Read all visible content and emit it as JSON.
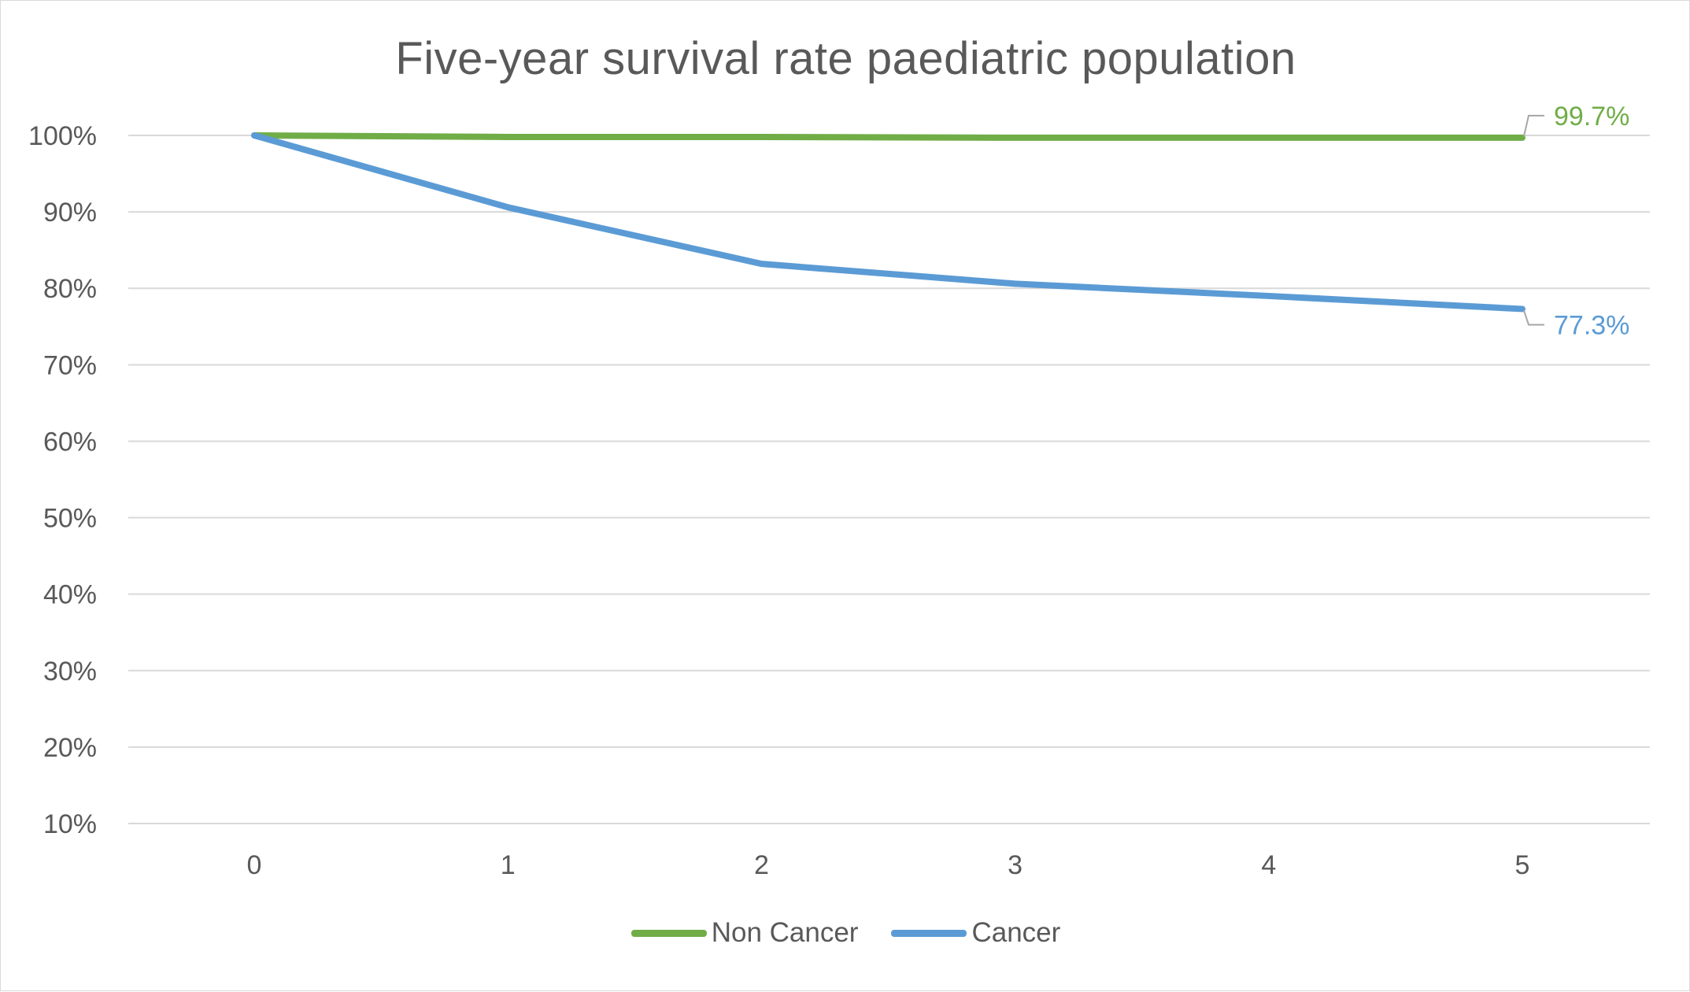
{
  "chart_data": {
    "type": "line",
    "title": "Five-year survival rate paediatric population",
    "xlabel": "",
    "ylabel": "",
    "x": [
      0,
      1,
      2,
      3,
      4,
      5
    ],
    "x_tick_labels": [
      "0",
      "1",
      "2",
      "3",
      "4",
      "5"
    ],
    "y_tick_labels": [
      "10%",
      "20%",
      "30%",
      "40%",
      "50%",
      "60%",
      "70%",
      "80%",
      "90%",
      "100%"
    ],
    "ylim": [
      10,
      100
    ],
    "y_unit": "%",
    "grid": true,
    "legend_position": "bottom",
    "series": [
      {
        "name": "Non Cancer",
        "color": "#70ad47",
        "values": [
          100,
          99.8,
          99.8,
          99.7,
          99.7,
          99.7
        ],
        "end_label": "99.7%"
      },
      {
        "name": "Cancer",
        "color": "#5b9bd5",
        "values": [
          100,
          90.6,
          83.2,
          80.6,
          79.0,
          77.3
        ],
        "end_label": "77.3%"
      }
    ]
  }
}
